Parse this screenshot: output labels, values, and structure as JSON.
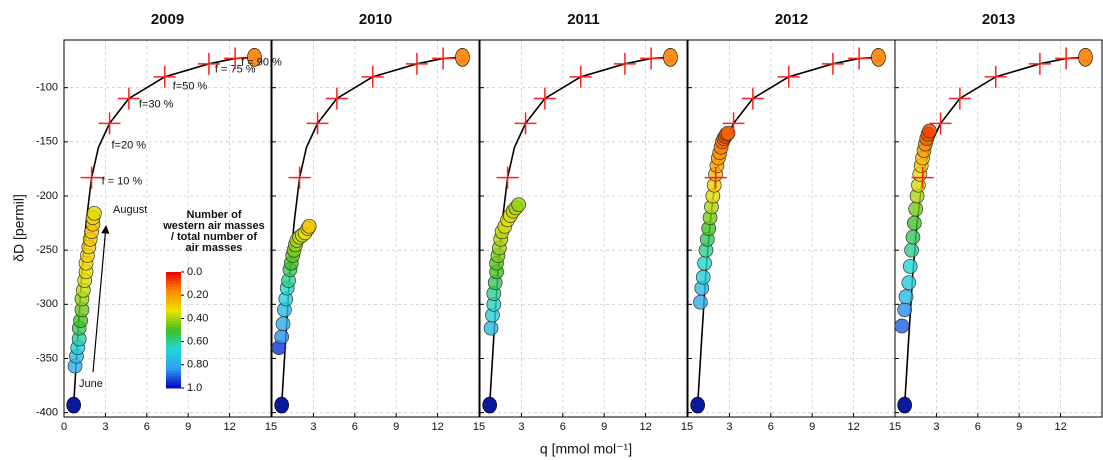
{
  "figure": {
    "xlabel": "q [mmol mol⁻¹]",
    "ylabel": "δD [permil]"
  },
  "colorbar": {
    "title_lines": [
      "Number of",
      "western air  masses",
      "/ total number of",
      "air  masses"
    ],
    "colors": [
      "#e60000",
      "#ff8c00",
      "#f0e000",
      "#40c020",
      "#20d8d8",
      "#30a0f0",
      "#0000c8"
    ],
    "ticks": [
      {
        "value": 0,
        "label": "0.0"
      },
      {
        "value": 0.2,
        "label": "0.20"
      },
      {
        "value": 0.4,
        "label": "0.40"
      },
      {
        "value": 0.6,
        "label": "0.60"
      },
      {
        "value": 0.8,
        "label": "0.80"
      },
      {
        "value": 1,
        "label": "1.0"
      }
    ]
  },
  "chart_data": [
    {
      "type": "scatter",
      "title": "2009",
      "xlim": [
        0,
        15
      ],
      "ylim": [
        -404,
        -56
      ],
      "xticks": [
        0,
        3,
        6,
        9,
        12,
        15
      ],
      "yticks": [
        -100,
        -150,
        -200,
        -250,
        -300,
        -350,
        -400
      ],
      "grid": true,
      "curve": {
        "color": "#000000",
        "x": [
          0.7,
          1.0,
          1.3,
          1.6,
          2.0,
          2.5,
          3.3,
          4.7,
          7.3,
          10.5,
          12.4,
          13.8
        ],
        "y": [
          -393,
          -330,
          -270,
          -225,
          -183,
          -155,
          -133,
          -110,
          -90,
          -78,
          -73,
          -72
        ]
      },
      "crosses": {
        "color": "#ff2020",
        "x": [
          2.0,
          3.3,
          4.7,
          7.3,
          10.5,
          12.4
        ],
        "y": [
          -183,
          -133,
          -110,
          -90,
          -78,
          -73
        ],
        "labels": [
          "f = 10 %",
          "f=20 %",
          "f=30 %",
          "f=50 %",
          "f = 75 %",
          "f = 90 %"
        ]
      },
      "start": {
        "color": "#0a1a9a",
        "x": 0.7,
        "y": -393
      },
      "end": {
        "color": "#ff8c1a",
        "x": 13.8,
        "y": -72
      },
      "points": {
        "x": [
          0.8,
          0.9,
          1.0,
          1.1,
          1.1,
          1.2,
          1.3,
          1.3,
          1.4,
          1.5,
          1.6,
          1.6,
          1.7,
          1.8,
          1.9,
          2.0,
          2.1,
          2.1,
          2.2
        ],
        "y": [
          -357,
          -348,
          -340,
          -332,
          -322,
          -315,
          -305,
          -295,
          -287,
          -278,
          -270,
          -262,
          -255,
          -247,
          -240,
          -233,
          -226,
          -220,
          -216
        ],
        "ratio": [
          0.8,
          0.75,
          0.7,
          0.62,
          0.55,
          0.5,
          0.46,
          0.42,
          0.38,
          0.36,
          0.34,
          0.32,
          0.3,
          0.3,
          0.28,
          0.28,
          0.27,
          0.3,
          0.35
        ]
      },
      "annotations": [
        "August",
        "June"
      ]
    },
    {
      "type": "scatter",
      "title": "2010",
      "xlim": [
        0,
        15
      ],
      "ylim": [
        -404,
        -56
      ],
      "xticks": [
        3,
        6,
        9,
        12,
        15
      ],
      "yticks": [
        -100,
        -150,
        -200,
        -250,
        -300,
        -350,
        -400
      ],
      "grid": true,
      "curve": {
        "color": "#000000",
        "x": [
          0.7,
          1.0,
          1.3,
          1.6,
          2.0,
          2.5,
          3.3,
          4.7,
          7.3,
          10.5,
          12.4,
          13.8
        ],
        "y": [
          -393,
          -330,
          -270,
          -225,
          -183,
          -155,
          -133,
          -110,
          -90,
          -78,
          -73,
          -72
        ]
      },
      "crosses": {
        "color": "#ff2020",
        "x": [
          2.0,
          3.3,
          4.7,
          7.3,
          10.5,
          12.4
        ],
        "y": [
          -183,
          -133,
          -110,
          -90,
          -78,
          -73
        ]
      },
      "start": {
        "color": "#0a1a9a",
        "x": 0.7,
        "y": -393
      },
      "end": {
        "color": "#ff8c1a",
        "x": 13.8,
        "y": -72
      },
      "points": {
        "x": [
          0.5,
          0.7,
          0.8,
          0.9,
          1.0,
          1.1,
          1.2,
          1.3,
          1.4,
          1.5,
          1.6,
          1.7,
          1.8,
          2.0,
          2.2,
          2.4,
          2.6,
          2.7
        ],
        "y": [
          -340,
          -330,
          -318,
          -305,
          -295,
          -285,
          -278,
          -268,
          -262,
          -255,
          -250,
          -245,
          -241,
          -238,
          -236,
          -234,
          -230,
          -228
        ],
        "ratio": [
          0.95,
          0.85,
          0.8,
          0.75,
          0.7,
          0.65,
          0.6,
          0.55,
          0.5,
          0.48,
          0.45,
          0.42,
          0.4,
          0.38,
          0.36,
          0.34,
          0.3,
          0.28
        ]
      }
    },
    {
      "type": "scatter",
      "title": "2011",
      "xlim": [
        0,
        15
      ],
      "ylim": [
        -404,
        -56
      ],
      "xticks": [
        3,
        6,
        9,
        12,
        15
      ],
      "yticks": [
        -100,
        -150,
        -200,
        -250,
        -300,
        -350,
        -400
      ],
      "grid": true,
      "curve": {
        "color": "#000000",
        "x": [
          0.7,
          1.0,
          1.3,
          1.6,
          2.0,
          2.5,
          3.3,
          4.7,
          7.3,
          10.5,
          12.4,
          13.8
        ],
        "y": [
          -393,
          -330,
          -270,
          -225,
          -183,
          -155,
          -133,
          -110,
          -90,
          -78,
          -73,
          -72
        ]
      },
      "crosses": {
        "color": "#ff2020",
        "x": [
          2.0,
          3.3,
          4.7,
          7.3,
          10.5,
          12.4
        ],
        "y": [
          -183,
          -133,
          -110,
          -90,
          -78,
          -73
        ]
      },
      "start": {
        "color": "#0a1a9a",
        "x": 0.7,
        "y": -393
      },
      "end": {
        "color": "#ff8c1a",
        "x": 13.8,
        "y": -72
      },
      "points": {
        "x": [
          0.8,
          0.9,
          1.0,
          1.0,
          1.1,
          1.2,
          1.2,
          1.3,
          1.4,
          1.5,
          1.6,
          1.8,
          2.0,
          2.2,
          2.4,
          2.6,
          2.8
        ],
        "y": [
          -322,
          -310,
          -300,
          -290,
          -280,
          -270,
          -262,
          -255,
          -248,
          -240,
          -233,
          -228,
          -222,
          -218,
          -214,
          -211,
          -208
        ],
        "ratio": [
          0.75,
          0.7,
          0.65,
          0.6,
          0.55,
          0.5,
          0.48,
          0.45,
          0.42,
          0.4,
          0.38,
          0.36,
          0.35,
          0.35,
          0.38,
          0.4,
          0.42
        ]
      }
    },
    {
      "type": "scatter",
      "title": "2012",
      "xlim": [
        0,
        15
      ],
      "ylim": [
        -404,
        -56
      ],
      "xticks": [
        3,
        6,
        9,
        12,
        15
      ],
      "yticks": [
        -100,
        -150,
        -200,
        -250,
        -300,
        -350,
        -400
      ],
      "grid": true,
      "curve": {
        "color": "#000000",
        "x": [
          0.7,
          1.0,
          1.3,
          1.6,
          2.0,
          2.5,
          3.3,
          4.7,
          7.3,
          10.5,
          12.4,
          13.8
        ],
        "y": [
          -393,
          -330,
          -270,
          -225,
          -183,
          -155,
          -133,
          -110,
          -90,
          -78,
          -73,
          -72
        ]
      },
      "crosses": {
        "color": "#ff2020",
        "x": [
          2.0,
          3.3,
          4.7,
          7.3,
          10.5,
          12.4
        ],
        "y": [
          -183,
          -133,
          -110,
          -90,
          -78,
          -73
        ]
      },
      "start": {
        "color": "#0a1a9a",
        "x": 0.7,
        "y": -393
      },
      "end": {
        "color": "#ff8c1a",
        "x": 13.8,
        "y": -72
      },
      "points": {
        "x": [
          0.9,
          1.0,
          1.1,
          1.2,
          1.3,
          1.4,
          1.5,
          1.6,
          1.7,
          1.8,
          1.9,
          2.0,
          2.1,
          2.2,
          2.3,
          2.4,
          2.5,
          2.6,
          2.7,
          2.8,
          2.9
        ],
        "y": [
          -298,
          -285,
          -275,
          -262,
          -250,
          -240,
          -230,
          -220,
          -210,
          -200,
          -190,
          -180,
          -172,
          -165,
          -160,
          -155,
          -150,
          -147,
          -145,
          -143,
          -142
        ],
        "ratio": [
          0.8,
          0.75,
          0.7,
          0.65,
          0.6,
          0.55,
          0.5,
          0.45,
          0.4,
          0.35,
          0.3,
          0.25,
          0.22,
          0.2,
          0.18,
          0.15,
          0.12,
          0.12,
          0.1,
          0.1,
          0.12
        ]
      }
    },
    {
      "type": "scatter",
      "title": "2013",
      "xlim": [
        0,
        15
      ],
      "ylim": [
        -404,
        -56
      ],
      "xticks": [
        3,
        6,
        9,
        12
      ],
      "yticks": [
        -100,
        -150,
        -200,
        -250,
        -300,
        -350,
        -400
      ],
      "grid": true,
      "curve": {
        "color": "#000000",
        "x": [
          0.7,
          1.0,
          1.3,
          1.6,
          2.0,
          2.5,
          3.3,
          4.7,
          7.3,
          10.5,
          12.4,
          13.8
        ],
        "y": [
          -393,
          -330,
          -270,
          -225,
          -183,
          -155,
          -133,
          -110,
          -90,
          -78,
          -73,
          -72
        ]
      },
      "crosses": {
        "color": "#ff2020",
        "x": [
          2.0,
          3.3,
          4.7,
          7.3,
          10.5,
          12.4
        ],
        "y": [
          -183,
          -133,
          -110,
          -90,
          -78,
          -73
        ]
      },
      "start": {
        "color": "#0a1a9a",
        "x": 0.7,
        "y": -393
      },
      "end": {
        "color": "#ff8c1a",
        "x": 13.8,
        "y": -72
      },
      "points": {
        "x": [
          0.5,
          0.7,
          0.8,
          1.0,
          1.1,
          1.2,
          1.3,
          1.4,
          1.5,
          1.6,
          1.7,
          1.8,
          1.9,
          2.0,
          2.1,
          2.2,
          2.3,
          2.4,
          2.5
        ],
        "y": [
          -320,
          -305,
          -293,
          -280,
          -265,
          -250,
          -238,
          -225,
          -212,
          -200,
          -190,
          -180,
          -172,
          -165,
          -158,
          -152,
          -147,
          -143,
          -140
        ],
        "ratio": [
          0.9,
          0.85,
          0.75,
          0.7,
          0.68,
          0.6,
          0.55,
          0.5,
          0.45,
          0.4,
          0.36,
          0.32,
          0.28,
          0.25,
          0.2,
          0.16,
          0.12,
          0.1,
          0.08
        ]
      }
    }
  ]
}
